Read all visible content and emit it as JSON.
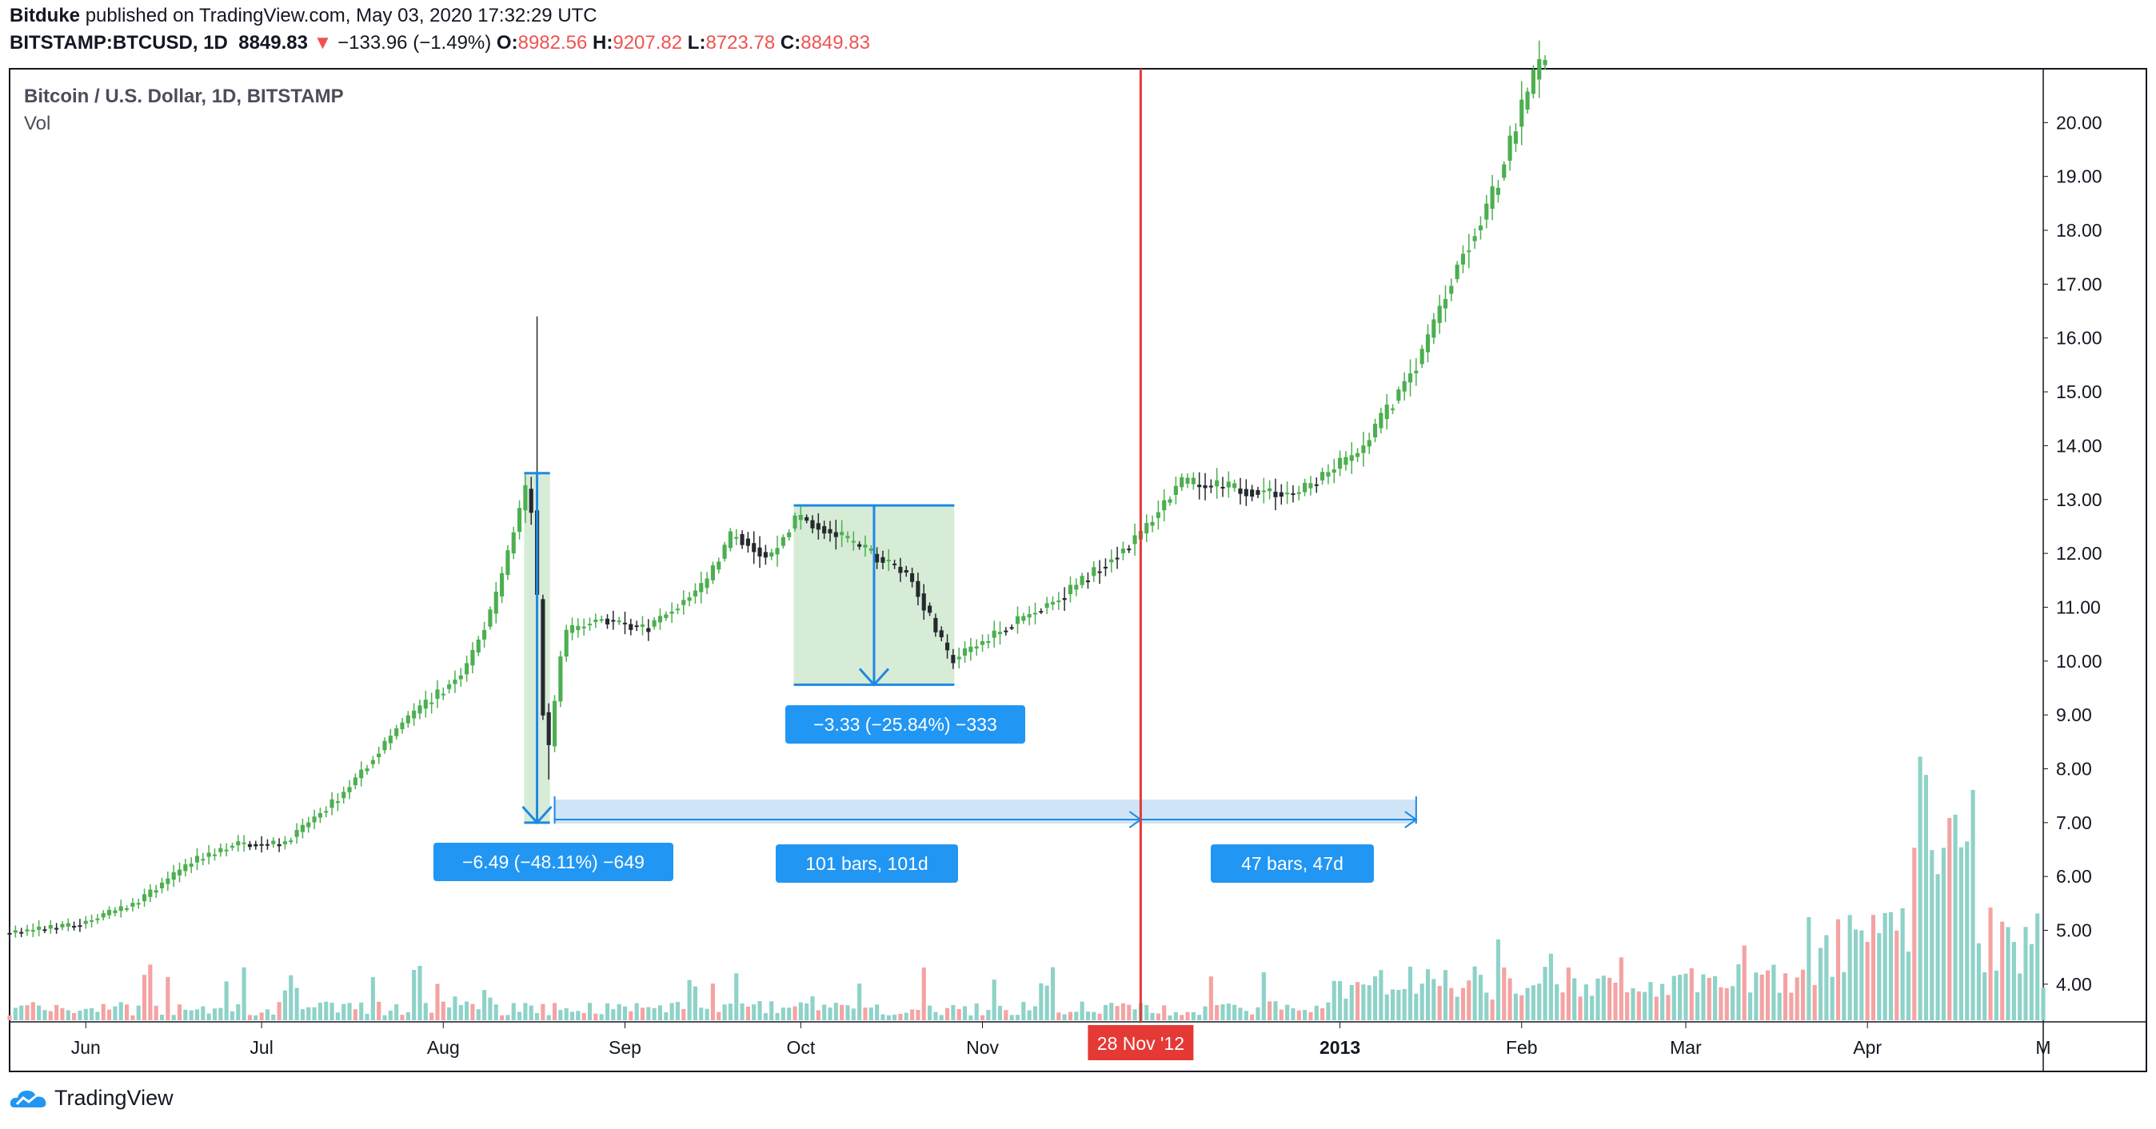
{
  "header": {
    "publisher": "Bitduke",
    "published_text": "published on TradingView.com, May 03, 2020 17:32:29 UTC",
    "symbol": "BITSTAMP:BTCUSD, 1D",
    "last": "8849.83",
    "change_arrow": "▼",
    "change": "−133.96 (−1.49%)",
    "o_label": "O:",
    "o_value": "8982.56",
    "h_label": "H:",
    "h_value": "9207.82",
    "l_label": "L:",
    "l_value": "8723.78",
    "c_label": "C:",
    "c_value": "8849.83"
  },
  "legend": {
    "title": "Bitcoin / U.S. Dollar, 1D, BITSTAMP",
    "volume_label": "Vol"
  },
  "branding": {
    "logo_text": "TradingView"
  },
  "colors": {
    "up": "#4caf50",
    "down": "#26292f",
    "vol_up": "#8ed2c8",
    "vol_down": "#f4a3a3",
    "measure_fill": "#cfe9cf",
    "measure_line": "#1e88e5",
    "range_fill": "#cfe4f7",
    "label_bg": "#2196f3",
    "crosshair": "#e53935"
  },
  "chart_data": {
    "type": "candlestick",
    "y_axis": {
      "ticks": [
        "4.00",
        "5.00",
        "6.00",
        "7.00",
        "8.00",
        "9.00",
        "10.00",
        "11.00",
        "12.00",
        "13.00",
        "14.00",
        "15.00",
        "16.00",
        "17.00",
        "18.00",
        "19.00",
        "20.00"
      ],
      "range": [
        3.3,
        21.0
      ]
    },
    "x_axis": {
      "ticks": [
        "Jun",
        "Jul",
        "Aug",
        "Sep",
        "Oct",
        "Nov",
        "2013",
        "Feb",
        "Mar",
        "Apr",
        "M"
      ],
      "range": [
        "2012-05-19",
        "2013-05-01"
      ]
    },
    "price_path": [
      [
        "2012-05-19",
        4.95
      ],
      [
        "2012-05-31",
        5.1
      ],
      [
        "2012-06-10",
        5.5
      ],
      [
        "2012-06-20",
        6.3
      ],
      [
        "2012-06-27",
        6.6
      ],
      [
        "2012-07-05",
        6.6
      ],
      [
        "2012-07-15",
        7.5
      ],
      [
        "2012-07-25",
        8.8
      ],
      [
        "2012-08-05",
        9.8
      ],
      [
        "2012-08-10",
        11.0
      ],
      [
        "2012-08-16",
        13.4
      ],
      [
        "2012-08-17",
        12.2
      ],
      [
        "2012-08-19",
        8.0
      ],
      [
        "2012-08-22",
        10.5
      ],
      [
        "2012-08-28",
        10.8
      ],
      [
        "2012-09-05",
        10.6
      ],
      [
        "2012-09-15",
        11.4
      ],
      [
        "2012-09-20",
        12.4
      ],
      [
        "2012-09-26",
        11.9
      ],
      [
        "2012-10-01",
        12.7
      ],
      [
        "2012-10-10",
        12.2
      ],
      [
        "2012-10-20",
        11.6
      ],
      [
        "2012-10-27",
        10.0
      ],
      [
        "2012-11-05",
        10.6
      ],
      [
        "2012-11-15",
        11.2
      ],
      [
        "2012-11-28",
        12.3
      ],
      [
        "2012-12-05",
        13.3
      ],
      [
        "2012-12-15",
        13.2
      ],
      [
        "2012-12-25",
        13.1
      ],
      [
        "2013-01-05",
        13.9
      ],
      [
        "2013-01-15",
        15.6
      ],
      [
        "2013-01-22",
        17.5
      ],
      [
        "2013-01-27",
        18.5
      ],
      [
        "2013-02-02",
        20.4
      ],
      [
        "2013-02-05",
        21.2
      ]
    ],
    "measures": [
      {
        "label": "−6.49 (−48.11%) −649",
        "from_date": "2012-08-16",
        "to_date": "2012-08-18",
        "from_price": 13.49,
        "to_price": 7.0
      },
      {
        "label": "−3.33 (−25.84%) −333",
        "from_date": "2012-10-01",
        "to_date": "2012-10-26",
        "from_price": 12.89,
        "to_price": 9.56
      }
    ],
    "date_ranges": [
      {
        "label": "101 bars, 101d",
        "from_date": "2012-08-19",
        "to_date": "2012-11-28"
      },
      {
        "label": "47 bars, 47d",
        "from_date": "2012-11-28",
        "to_date": "2013-01-14"
      }
    ],
    "crosshair": {
      "date": "2012-11-28",
      "label": "28 Nov '12"
    }
  }
}
